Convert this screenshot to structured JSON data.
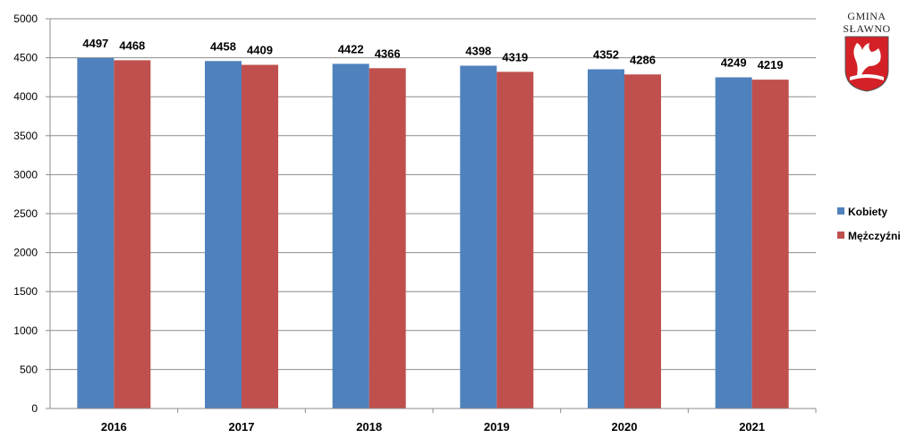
{
  "chart_data": {
    "type": "bar",
    "title": "",
    "xlabel": "",
    "ylabel": "",
    "categories": [
      "2016",
      "2017",
      "2018",
      "2019",
      "2020",
      "2021"
    ],
    "series": [
      {
        "name": "Kobiety",
        "values": [
          4497,
          4458,
          4422,
          4398,
          4352,
          4249
        ],
        "color": "#4F81BD"
      },
      {
        "name": "Mężczyźni",
        "values": [
          4468,
          4409,
          4366,
          4319,
          4286,
          4219
        ],
        "color": "#C0504D"
      }
    ],
    "ylim": [
      0,
      5000
    ],
    "ytick_step": 500,
    "grid": true,
    "legend_position": "right",
    "data_labels": true
  },
  "logo": {
    "text_line1": "GMINA",
    "text_line2": "SŁAWNO",
    "shield_color": "#D42027"
  }
}
